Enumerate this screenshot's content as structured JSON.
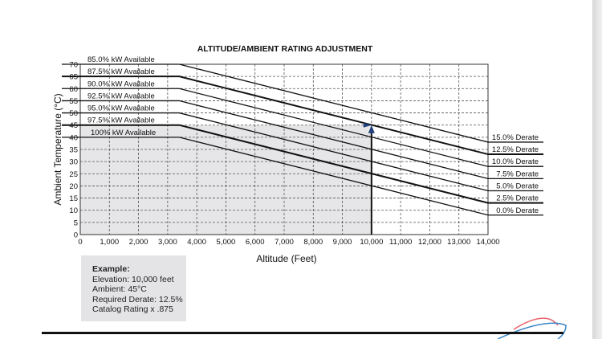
{
  "chart_data": {
    "type": "line",
    "title": "ALTITUDE/AMBIENT RATING ADJUSTMENT",
    "xlabel": "Altitude (Feet)",
    "ylabel": "Ambient Temperature (°C)",
    "xlim": [
      0,
      14000
    ],
    "ylim": [
      0,
      70
    ],
    "grid": true,
    "x_ticks": [
      "0",
      "1,000",
      "2,000",
      "3,000",
      "4,000",
      "5,000",
      "6,000",
      "7,000",
      "8,000",
      "9,000",
      "10,000",
      "11,000",
      "12,000",
      "13,000",
      "14,000"
    ],
    "y_ticks": [
      "0",
      "5",
      "10",
      "15",
      "20",
      "25",
      "30",
      "35",
      "40",
      "45",
      "50",
      "55",
      "60",
      "65",
      "70"
    ],
    "series": [
      {
        "name": "85.0% kW Available",
        "right_label": "15.0% Derate",
        "x": [
          0,
          3400,
          14000
        ],
        "y": [
          70,
          70,
          38
        ]
      },
      {
        "name": "87.5% kW Available",
        "right_label": "12.5% Derate",
        "x": [
          0,
          3400,
          14000
        ],
        "y": [
          65,
          65,
          33
        ]
      },
      {
        "name": "90.0% kW Available",
        "right_label": "10.0% Derate",
        "x": [
          0,
          3400,
          14000
        ],
        "y": [
          60,
          60,
          28
        ]
      },
      {
        "name": "92.5% kW Available",
        "right_label": "7.5% Derate",
        "x": [
          0,
          3400,
          14000
        ],
        "y": [
          55,
          55,
          23
        ]
      },
      {
        "name": "95.0% kW Available",
        "right_label": "5.0% Derate",
        "x": [
          0,
          3400,
          14000
        ],
        "y": [
          50,
          50,
          18
        ]
      },
      {
        "name": "97.5% kW Available",
        "right_label": "2.5% Derate",
        "x": [
          0,
          3400,
          14000
        ],
        "y": [
          45,
          45,
          13
        ]
      },
      {
        "name": "100% kW Available",
        "right_label": "0.0% Derate",
        "x": [
          0,
          3400,
          14000
        ],
        "y": [
          40,
          40,
          8
        ]
      }
    ],
    "example_point": {
      "altitude": 10000,
      "temperature": 45
    },
    "example": {
      "heading": "Example:",
      "lines": [
        "Elevation:  10,000 feet",
        "Ambient: 45°C",
        "Required Derate: 12.5%",
        "Catalog Rating x .875"
      ]
    },
    "colors": {
      "shade": "#e6e6e8",
      "arrow": "#1f3f7a",
      "logo_red": "#e8636a",
      "logo_blue": "#3a86c8"
    }
  }
}
